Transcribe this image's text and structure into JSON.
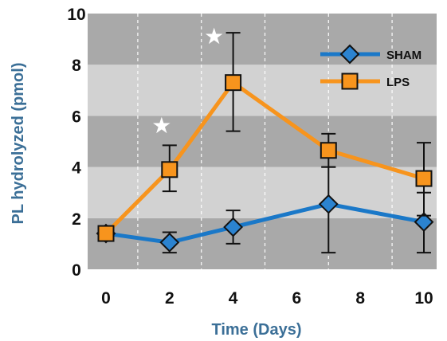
{
  "chart_data": {
    "type": "line",
    "title": "",
    "xlabel": "Time (Days)",
    "ylabel": "PL hydrolyzed (pmol)",
    "xlim": [
      -0.5,
      10.5
    ],
    "ylim": [
      0,
      10
    ],
    "xticks": [
      "0",
      "2",
      "4",
      "6",
      "8",
      "10"
    ],
    "yticks": [
      "0",
      "2",
      "4",
      "6",
      "8",
      "10"
    ],
    "grid": "vertical dashed lines, alternating horizontal bands",
    "band_colors": [
      "#a9a9a9",
      "#d2d2d2"
    ],
    "legend_position": "top-right",
    "series": [
      {
        "name": "SHAM",
        "color": "#1a78c8",
        "marker": "diamond",
        "marker_fill": "#2b83d0",
        "x": [
          0,
          2,
          4,
          7,
          10
        ],
        "y": [
          1.4,
          1.05,
          1.65,
          2.55,
          1.85
        ],
        "err_low": [
          1.4,
          0.65,
          1.0,
          0.65,
          0.65
        ],
        "err_high": [
          1.4,
          1.45,
          2.3,
          4.0,
          3.0
        ]
      },
      {
        "name": "LPS",
        "color": "#f7941d",
        "marker": "square",
        "marker_fill": "#f7941d",
        "x": [
          0,
          2,
          4,
          7,
          10
        ],
        "y": [
          1.4,
          3.9,
          7.3,
          4.65,
          3.55
        ],
        "err_low": [
          1.4,
          3.05,
          5.4,
          4.0,
          2.1
        ],
        "err_high": [
          1.4,
          4.85,
          9.25,
          5.3,
          4.95
        ]
      }
    ],
    "annotations": [
      {
        "symbol": "★",
        "x": 1.75,
        "y": 5.6,
        "meaning": "significance marker"
      },
      {
        "symbol": "★",
        "x": 3.4,
        "y": 9.1,
        "meaning": "significance marker"
      }
    ]
  }
}
